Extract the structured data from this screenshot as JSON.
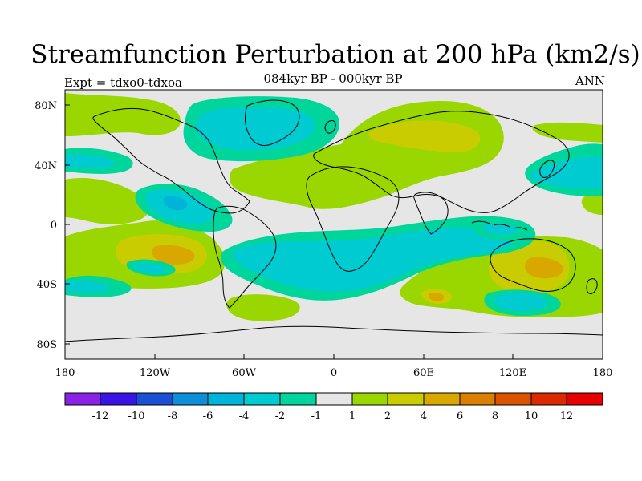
{
  "header": {
    "title": "Streamfunction Perturbation at 200 hPa (km2/s)",
    "subtitle": "084kyr BP - 000kyr BP",
    "expt": "Expt = tdxo0-tdxoa",
    "season": "ANN"
  },
  "map": {
    "longitude_ticks": [
      "180",
      "120W",
      "60W",
      "0",
      "60E",
      "120E",
      "180"
    ],
    "latitude_ticks": [
      "80N",
      "40N",
      "0",
      "40S",
      "80S"
    ]
  },
  "legend": {
    "labels": [
      "-12",
      "-10",
      "-8",
      "-6",
      "-4",
      "-2",
      "-1",
      "1",
      "2",
      "4",
      "6",
      "8",
      "10",
      "12"
    ],
    "colors": [
      "#8a22e6",
      "#3a13e6",
      "#1b4fd6",
      "#0d8ed9",
      "#00b3d8",
      "#00cbd1",
      "#00d69c",
      "#e6e6e6",
      "#9ad600",
      "#c9cc00",
      "#d9a800",
      "#db7f00",
      "#db5300",
      "#dc2a00",
      "#e60000"
    ]
  },
  "colors": {
    "background": "#e6e6e6",
    "coast": "#000000"
  }
}
